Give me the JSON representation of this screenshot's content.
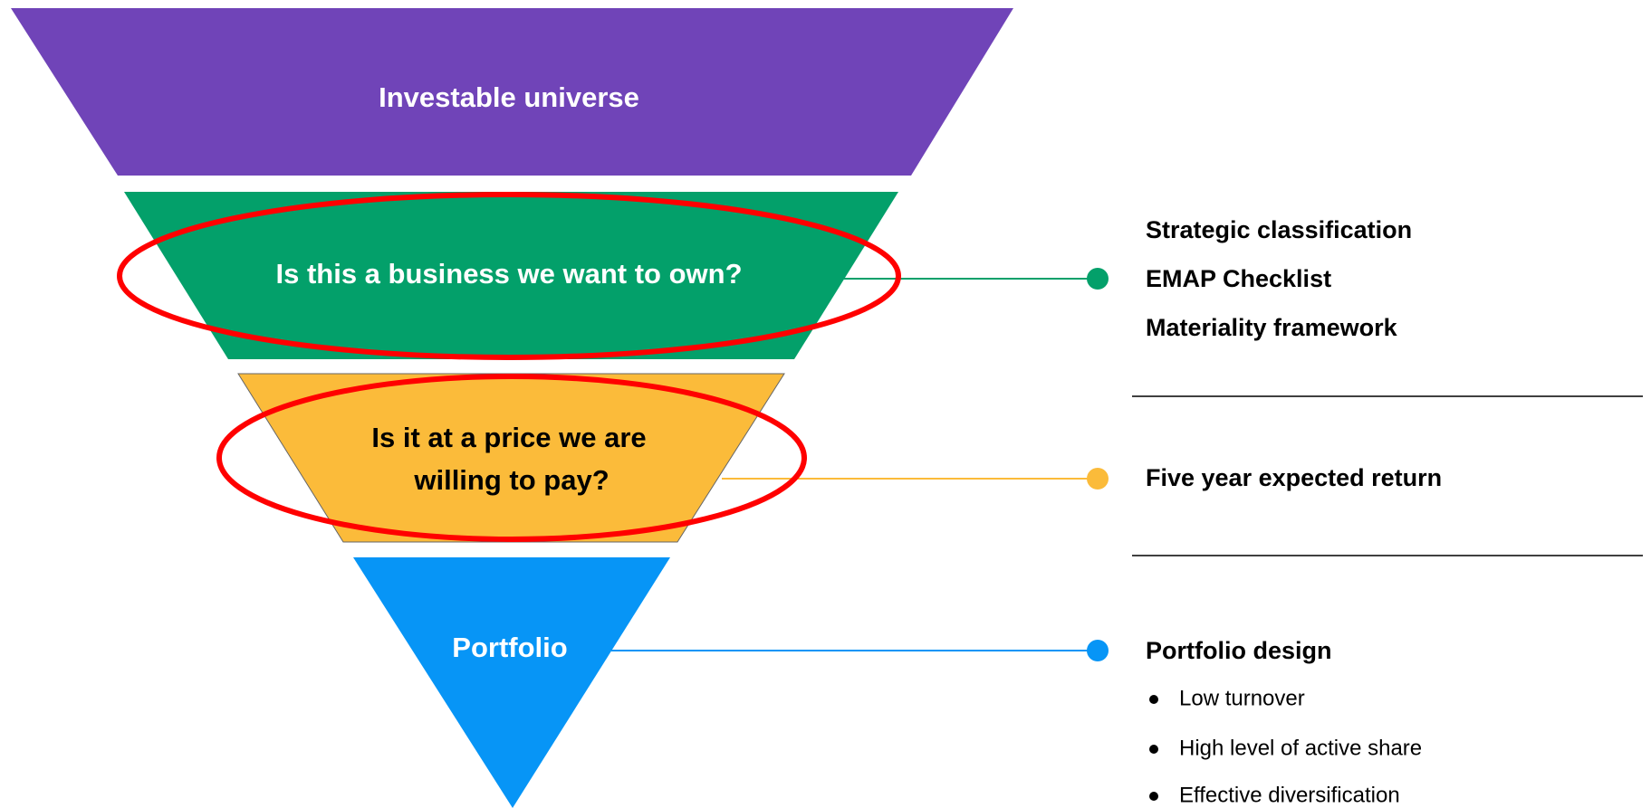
{
  "funnel": [
    {
      "label": "Investable universe"
    },
    {
      "label": "Is this a business we want to own?"
    },
    {
      "label_lines": [
        "Is it at a price we are",
        "willing to pay?"
      ]
    },
    {
      "label": "Portfolio"
    }
  ],
  "details": {
    "business": [
      "Strategic classification",
      "EMAP Checklist",
      "Materiality framework"
    ],
    "price": [
      "Five year expected return"
    ],
    "portfolio": {
      "title": "Portfolio design",
      "bullets": [
        "Low turnover",
        "High level of active share",
        "Effective diversification"
      ]
    }
  }
}
